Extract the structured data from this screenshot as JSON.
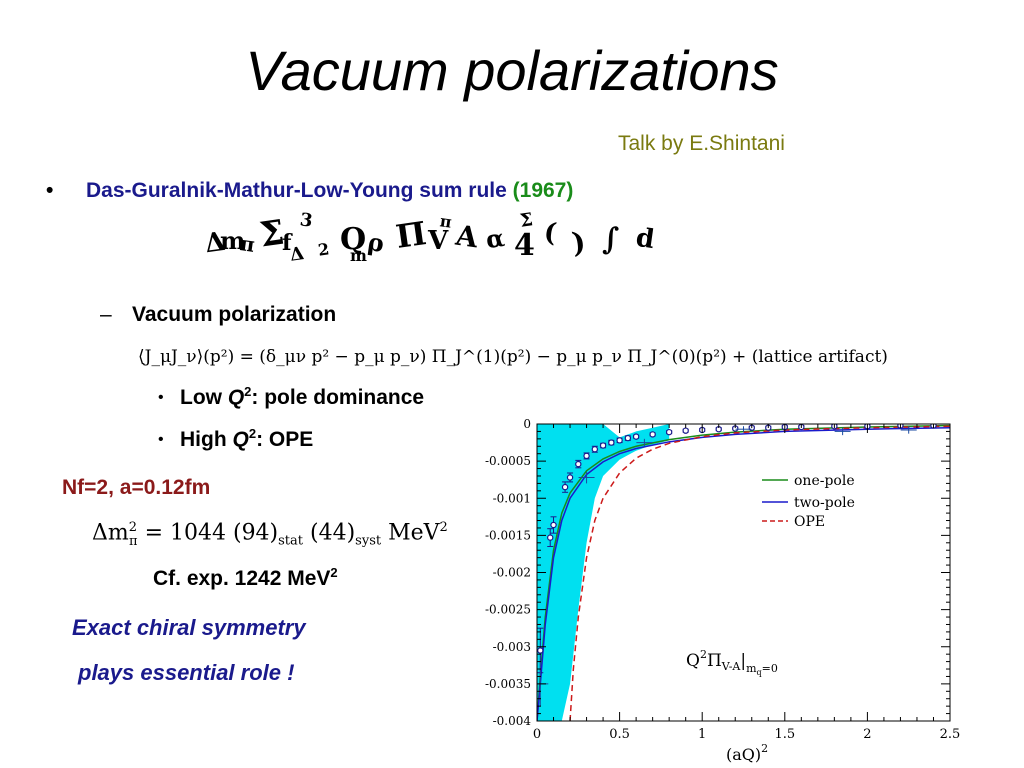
{
  "slide": {
    "title": "Vacuum polarizations",
    "credit": "Talk by E.Shintani",
    "bullet1": {
      "marker": "•",
      "text": "Das-Guralnik-Mathur-Low-Young sum rule",
      "year": "(1967)"
    },
    "sum_rule_glyphs": [
      "Δ",
      "m",
      "π",
      "Σ",
      "f",
      "3",
      "2",
      "Q",
      "ρ",
      "Π",
      "V",
      "A",
      "α",
      "4",
      "(",
      ")",
      "∫",
      "d"
    ],
    "sub1": {
      "marker": "–",
      "text": "Vacuum polarization"
    },
    "vp_equation": "⟨J_μJ_ν⟩(p²) = (δ_μν p² − p_μ p_ν) Π_J^(1)(p²) − p_μ p_ν Π_J^(0)(p²) + (lattice artifact)",
    "items": [
      {
        "marker": "•",
        "pre": "Low ",
        "q": "Q",
        "sup": "2",
        "post": ": pole dominance"
      },
      {
        "marker": "•",
        "pre": "High ",
        "q": "Q",
        "sup": "2",
        "post": ": OPE"
      }
    ],
    "params": "Nf=2, a=0.12fm",
    "mass": {
      "lhs": "Δm",
      "sub_lhs": "π",
      "sup_lhs": "2",
      "eq": " = 1044 (94)",
      "stat": "stat",
      "mid": " (44)",
      "syst": "syst",
      "unit": " MeV",
      "unit_sup": "2"
    },
    "cf": {
      "text": "Cf. exp. 1242 MeV",
      "sup": "2"
    },
    "chiral": [
      "Exact chiral symmetry",
      "plays essential role !"
    ]
  },
  "chart_data": {
    "type": "line",
    "xlabel": "(aQ)",
    "xlabel_sup": "2",
    "xlim": [
      0,
      2.5
    ],
    "ylim": [
      -0.004,
      0
    ],
    "x_ticks": [
      0,
      0.5,
      1,
      1.5,
      2,
      2.5
    ],
    "x_tick_labels": [
      "0",
      "0.5",
      "1",
      "1.5",
      "2",
      "2.5"
    ],
    "y_ticks": [
      0,
      -0.0005,
      -0.001,
      -0.0015,
      -0.002,
      -0.0025,
      -0.003,
      -0.0035,
      -0.004
    ],
    "y_tick_labels": [
      "0",
      "-0.0005",
      "-0.001",
      "-0.0015",
      "-0.002",
      "-0.0025",
      "-0.003",
      "-0.0035",
      "-0.004"
    ],
    "annotation": {
      "main": "Q",
      "sup": "2",
      "pi": "Π",
      "sub": "V-A",
      "cond": "m",
      "cond_sub": "q",
      "cond_tail": "=0"
    },
    "legend_position": "upper-right",
    "colors": {
      "one_pole": "#1a8c1a",
      "two_pole": "#1a1acc",
      "ope": "#cc1a1a",
      "band": "#00e0f0",
      "points": "#1a1a8c"
    },
    "band": {
      "x": [
        0.0,
        0.05,
        0.1,
        0.15,
        0.2,
        0.25,
        0.3,
        0.35,
        0.4,
        0.5,
        0.6,
        0.7,
        0.8
      ],
      "lower": [
        -0.004,
        -0.004,
        -0.004,
        -0.004,
        -0.0035,
        -0.0025,
        -0.0016,
        -0.001,
        -0.0007,
        -0.00048,
        -0.00036,
        -0.00028,
        -0.00022
      ],
      "upper": [
        0.0,
        0.0,
        0.0,
        0.0,
        0.0,
        0.0,
        0.0,
        0.0,
        0.0,
        -0.00018,
        -0.0001,
        -5e-05,
        0.0
      ]
    },
    "series": [
      {
        "name": "one-pole",
        "style": "solid",
        "x": [
          0.0,
          0.02,
          0.05,
          0.1,
          0.15,
          0.2,
          0.3,
          0.4,
          0.5,
          0.6,
          0.8,
          1.0,
          1.2,
          1.5,
          2.0,
          2.5
        ],
        "y": [
          -0.004,
          -0.0034,
          -0.0026,
          -0.0017,
          -0.0012,
          -0.00093,
          -0.00063,
          -0.00047,
          -0.00037,
          -0.0003,
          -0.00021,
          -0.00015,
          -0.00011,
          -7e-05,
          -4e-05,
          -2e-05
        ]
      },
      {
        "name": "two-pole",
        "style": "solid",
        "x": [
          0.0,
          0.02,
          0.05,
          0.1,
          0.15,
          0.2,
          0.3,
          0.4,
          0.5,
          0.6,
          0.8,
          1.0,
          1.2,
          1.5,
          2.0,
          2.5
        ],
        "y": [
          -0.004,
          -0.0035,
          -0.0027,
          -0.0018,
          -0.0013,
          -0.001,
          -0.00068,
          -0.00051,
          -0.0004,
          -0.00033,
          -0.00024,
          -0.00018,
          -0.00014,
          -0.0001,
          -7e-05,
          -5e-05
        ]
      },
      {
        "name": "OPE",
        "style": "dashed",
        "x": [
          0.2,
          0.22,
          0.25,
          0.3,
          0.35,
          0.4,
          0.5,
          0.6,
          0.7,
          0.8,
          1.0,
          1.2,
          1.5,
          2.0,
          2.5
        ],
        "y": [
          -0.004,
          -0.0033,
          -0.0026,
          -0.0018,
          -0.0013,
          -0.001,
          -0.00066,
          -0.00046,
          -0.00034,
          -0.00026,
          -0.00017,
          -0.00012,
          -8e-05,
          -5e-05,
          -3e-05
        ]
      }
    ],
    "points": {
      "x": [
        0.02,
        0.08,
        0.1,
        0.17,
        0.2,
        0.25,
        0.3,
        0.35,
        0.4,
        0.45,
        0.5,
        0.55,
        0.6,
        0.7,
        0.8,
        0.9,
        1.0,
        1.1,
        1.2,
        1.3,
        1.4,
        1.5,
        1.6,
        1.8,
        2.0,
        2.2,
        2.4
      ],
      "y": [
        -0.00305,
        -0.00153,
        -0.00136,
        -0.00085,
        -0.00072,
        -0.00054,
        -0.00043,
        -0.00034,
        -0.00029,
        -0.00025,
        -0.00022,
        -0.00019,
        -0.00017,
        -0.00014,
        -0.00011,
        -9e-05,
        -8e-05,
        -7e-05,
        -6e-05,
        -5e-05,
        -5e-05,
        -4e-05,
        -4e-05,
        -3e-05,
        -3e-05,
        -2e-05,
        -2e-05
      ],
      "err": [
        0.0003,
        0.00012,
        0.00011,
        7e-05,
        6e-05,
        5e-05,
        4e-05,
        4e-05,
        3e-05,
        3e-05,
        3e-05,
        3e-05,
        2e-05,
        2e-05,
        2e-05,
        2e-05,
        2e-05,
        2e-05,
        2e-05,
        2e-05,
        2e-05,
        2e-05,
        2e-05,
        2e-05,
        2e-05,
        2e-05,
        2e-05
      ]
    },
    "lone_errorbars": {
      "x": [
        0.02,
        0.3,
        0.65,
        1.25,
        1.85,
        2.25
      ],
      "y": [
        -0.0035,
        -0.00072,
        -0.00025,
        -7e-05,
        -0.0001,
        -8e-05
      ],
      "err": [
        0.0003,
        8e-05,
        5e-05,
        4e-05,
        5e-05,
        5e-05
      ]
    }
  }
}
